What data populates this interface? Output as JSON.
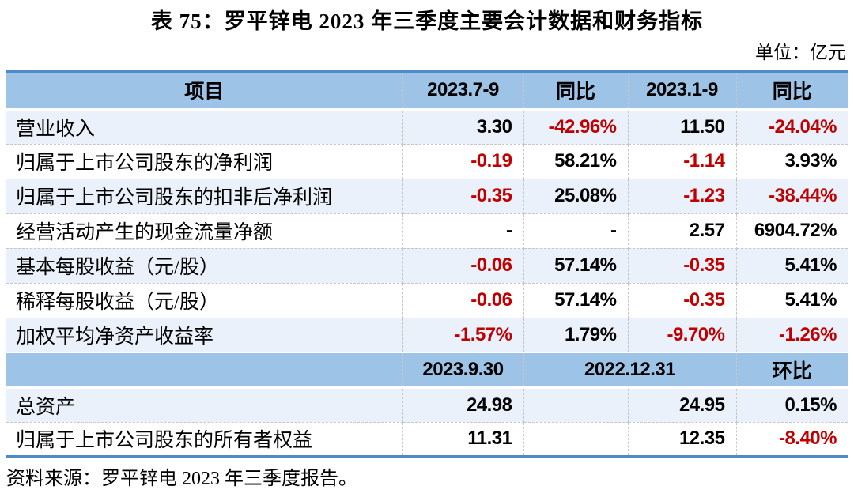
{
  "page": {
    "title": "表 75：罗平锌电 2023 年三季度主要会计数据和财务指标",
    "unit_label": "单位：亿元",
    "source": "资料来源：罗平锌电 2023 年三季度报告。"
  },
  "colors": {
    "header_bg": "#9DC3E6",
    "row_alt_bg": "#EBF1FA",
    "table_border": "#4E8BC8",
    "negative": "#C00000",
    "text": "#000000"
  },
  "table": {
    "header1": [
      "项目",
      "2023.7-9",
      "同比",
      "2023.1-9",
      "同比"
    ],
    "rows1": [
      {
        "label": "营业收入",
        "values": [
          "3.30",
          "-42.96%",
          "11.50",
          "-24.04%"
        ]
      },
      {
        "label": "归属于上市公司股东的净利润",
        "values": [
          "-0.19",
          "58.21%",
          "-1.14",
          "3.93%"
        ]
      },
      {
        "label": "归属于上市公司股东的扣非后净利润",
        "values": [
          "-0.35",
          "25.08%",
          "-1.23",
          "-38.44%"
        ]
      },
      {
        "label": "经营活动产生的现金流量净额",
        "values": [
          "-",
          "-",
          "2.57",
          "6904.72%"
        ]
      },
      {
        "label": "基本每股收益（元/股）",
        "values": [
          "-0.06",
          "57.14%",
          "-0.35",
          "5.41%"
        ]
      },
      {
        "label": "稀释每股收益（元/股）",
        "values": [
          "-0.06",
          "57.14%",
          "-0.35",
          "5.41%"
        ]
      },
      {
        "label": "加权平均净资产收益率",
        "values": [
          "-1.57%",
          "1.79%",
          "-9.70%",
          "-1.26%"
        ]
      }
    ],
    "header2": {
      "col1": "",
      "col2": "2023.9.30",
      "col34": "2022.12.31",
      "col5": "环比"
    },
    "rows2": [
      {
        "label": "总资产",
        "values": [
          "24.98",
          "",
          "24.95",
          "0.15%"
        ]
      },
      {
        "label": "归属于上市公司股东的所有者权益",
        "values": [
          "11.31",
          "",
          "12.35",
          "-8.40%"
        ]
      }
    ]
  }
}
